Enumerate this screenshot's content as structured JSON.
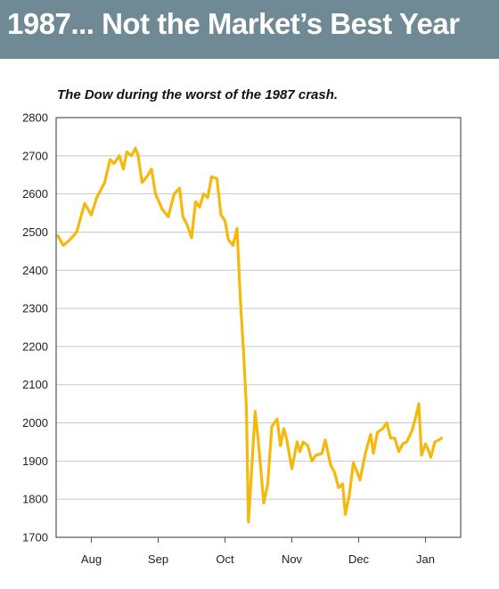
{
  "banner": {
    "title": "1987... Not the Market’s Best Year"
  },
  "chart_data": {
    "type": "line",
    "title": "The Dow during the worst of the 1987 crash.",
    "xlabel": "",
    "ylabel": "",
    "ylim": [
      1700,
      2800
    ],
    "yticks": [
      2800,
      2700,
      2600,
      2500,
      2400,
      2300,
      2200,
      2100,
      2000,
      1900,
      1800,
      1700
    ],
    "xticks": [
      {
        "label": "Aug",
        "t": 0.5
      },
      {
        "label": "Sep",
        "t": 1.5
      },
      {
        "label": "Oct",
        "t": 2.5
      },
      {
        "label": "Nov",
        "t": 3.5
      },
      {
        "label": "Dec",
        "t": 4.5
      },
      {
        "label": "Jan",
        "t": 5.5
      }
    ],
    "xlim": [
      0,
      6
    ],
    "grid": true,
    "legend": "none",
    "colors": {
      "line": "#f5b90d",
      "grid": "#c8c8c8",
      "frame": "#555555"
    },
    "series": [
      {
        "points": [
          [
            0.0,
            2490
          ],
          [
            0.08,
            2465
          ],
          [
            0.18,
            2480
          ],
          [
            0.28,
            2500
          ],
          [
            0.4,
            2575
          ],
          [
            0.5,
            2545
          ],
          [
            0.58,
            2590
          ],
          [
            0.7,
            2630
          ],
          [
            0.78,
            2690
          ],
          [
            0.84,
            2680
          ],
          [
            0.92,
            2700
          ],
          [
            0.98,
            2665
          ],
          [
            1.03,
            2710
          ],
          [
            1.1,
            2700
          ],
          [
            1.16,
            2720
          ],
          [
            1.2,
            2700
          ],
          [
            1.26,
            2630
          ],
          [
            1.33,
            2645
          ],
          [
            1.4,
            2665
          ],
          [
            1.46,
            2600
          ],
          [
            1.56,
            2560
          ],
          [
            1.65,
            2540
          ],
          [
            1.74,
            2600
          ],
          [
            1.82,
            2615
          ],
          [
            1.87,
            2540
          ],
          [
            1.93,
            2520
          ],
          [
            2.0,
            2485
          ],
          [
            2.06,
            2580
          ],
          [
            2.12,
            2565
          ],
          [
            2.18,
            2600
          ],
          [
            2.24,
            2590
          ],
          [
            2.3,
            2645
          ],
          [
            2.38,
            2640
          ],
          [
            2.44,
            2545
          ],
          [
            2.5,
            2530
          ],
          [
            2.55,
            2480
          ],
          [
            2.62,
            2465
          ],
          [
            2.68,
            2510
          ],
          [
            2.73,
            2320
          ],
          [
            2.78,
            2180
          ],
          [
            2.82,
            2040
          ],
          [
            2.85,
            1740
          ],
          [
            2.9,
            1880
          ],
          [
            2.95,
            2030
          ],
          [
            3.0,
            1950
          ],
          [
            3.04,
            1870
          ],
          [
            3.08,
            1790
          ],
          [
            3.14,
            1840
          ],
          [
            3.2,
            1990
          ],
          [
            3.28,
            2010
          ],
          [
            3.33,
            1940
          ],
          [
            3.38,
            1985
          ],
          [
            3.42,
            1960
          ],
          [
            3.5,
            1880
          ],
          [
            3.58,
            1950
          ],
          [
            3.62,
            1925
          ],
          [
            3.67,
            1950
          ],
          [
            3.74,
            1940
          ],
          [
            3.8,
            1900
          ],
          [
            3.86,
            1915
          ],
          [
            3.95,
            1920
          ],
          [
            4.0,
            1955
          ],
          [
            4.08,
            1890
          ],
          [
            4.14,
            1870
          ],
          [
            4.2,
            1830
          ],
          [
            4.26,
            1840
          ],
          [
            4.3,
            1760
          ],
          [
            4.36,
            1810
          ],
          [
            4.42,
            1895
          ],
          [
            4.48,
            1870
          ],
          [
            4.52,
            1850
          ],
          [
            4.6,
            1920
          ],
          [
            4.68,
            1970
          ],
          [
            4.72,
            1920
          ],
          [
            4.78,
            1975
          ],
          [
            4.86,
            1985
          ],
          [
            4.92,
            2000
          ],
          [
            4.98,
            1960
          ],
          [
            5.04,
            1960
          ],
          [
            5.1,
            1925
          ],
          [
            5.16,
            1945
          ],
          [
            5.22,
            1950
          ],
          [
            5.3,
            1980
          ],
          [
            5.36,
            2020
          ],
          [
            5.4,
            2050
          ],
          [
            5.44,
            1915
          ],
          [
            5.5,
            1945
          ],
          [
            5.54,
            1930
          ],
          [
            5.58,
            1910
          ],
          [
            5.64,
            1950
          ],
          [
            5.7,
            1955
          ],
          [
            5.74,
            1960
          ]
        ]
      }
    ]
  }
}
